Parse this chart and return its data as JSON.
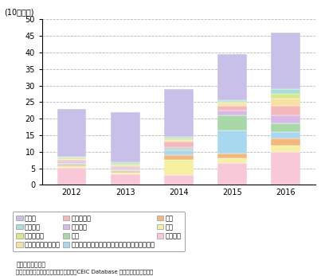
{
  "years": [
    "2012",
    "2013",
    "2014",
    "2015",
    "2016"
  ],
  "ylabel": "(10億ドル)",
  "ylim": [
    0,
    50
  ],
  "yticks": [
    0,
    5,
    10,
    15,
    20,
    25,
    30,
    35,
    40,
    45,
    50
  ],
  "categories": [
    "サービス",
    "通信",
    "賿易",
    "コンピュータ（ソフトウェア・ハードウェア）",
    "建設",
    "電気機器",
    "自動車産業",
    "セメント・石膏製品",
    "情報・放送",
    "冶金産業",
    "その他"
  ],
  "colors": [
    "#f9c8d8",
    "#f5f0a0",
    "#f5b87a",
    "#a8d8f0",
    "#a8d8a8",
    "#d8b8e8",
    "#f5b8b8",
    "#f8e0a0",
    "#d8e888",
    "#a8e0d8",
    "#c8c0e8"
  ],
  "data": {
    "2012": [
      5.2,
      0.4,
      0.5,
      0.4,
      0.2,
      0.4,
      0.4,
      0.3,
      0.4,
      0.3,
      14.5
    ],
    "2013": [
      3.2,
      0.4,
      0.5,
      0.4,
      0.2,
      0.4,
      0.5,
      0.3,
      0.5,
      0.4,
      15.2
    ],
    "2014": [
      3.0,
      4.5,
      1.5,
      1.5,
      0.5,
      0.5,
      1.5,
      0.5,
      0.5,
      0.5,
      14.5
    ],
    "2015": [
      6.5,
      1.5,
      1.5,
      7.0,
      4.5,
      1.5,
      1.5,
      0.5,
      0.5,
      0.5,
      14.0
    ],
    "2016": [
      10.0,
      2.0,
      2.0,
      2.0,
      2.5,
      2.5,
      3.0,
      2.0,
      1.5,
      1.5,
      17.0
    ]
  },
  "legend_entries": [
    [
      10,
      "その他"
    ],
    [
      9,
      "冶金産業"
    ],
    [
      8,
      "情報・放送"
    ],
    [
      7,
      "セメント・石膏製品"
    ],
    [
      6,
      "自動車産業"
    ],
    [
      5,
      "電気機器"
    ],
    [
      4,
      "建設"
    ],
    [
      3,
      "コンピュータ（ソフトウェア・ハードウェア）"
    ],
    [
      2,
      "賿易"
    ],
    [
      1,
      "通信"
    ],
    [
      0,
      "サービス"
    ]
  ],
  "note1": "備考：西暦ベース",
  "note2": "資料：インド商工業省産業政策推進局、CEIC Database から経済産業省作成。",
  "bar_width": 0.55,
  "background_color": "#ffffff",
  "grid_color": "#aaaaaa"
}
